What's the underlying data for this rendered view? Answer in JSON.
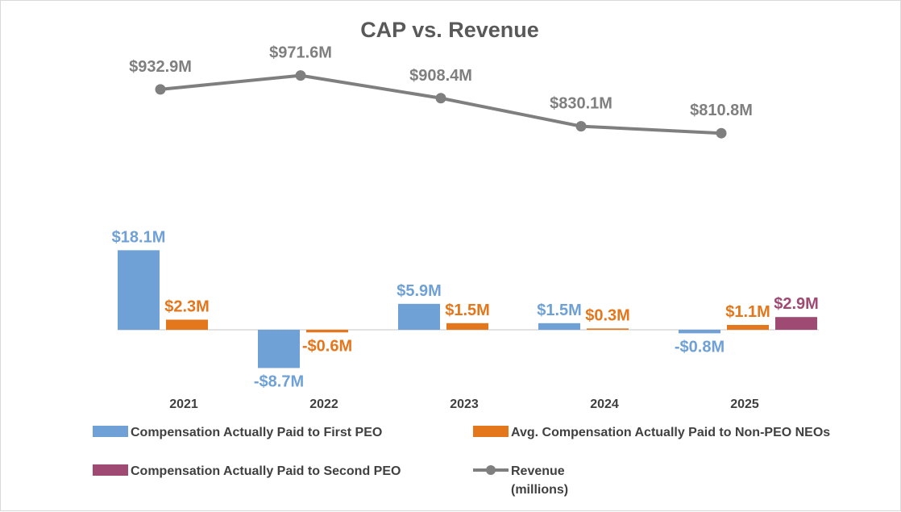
{
  "chart_data": {
    "type": "bar",
    "title": "CAP vs. Revenue",
    "categories": [
      "2021",
      "2022",
      "2023",
      "2024",
      "2025"
    ],
    "series": [
      {
        "name": "Compensation Actually Paid to First PEO",
        "type": "bar",
        "color": "#6fa1d6",
        "values": [
          18.1,
          -8.7,
          5.9,
          1.5,
          -0.8
        ],
        "labels": [
          "$18.1M",
          "-$8.7M",
          "$5.9M",
          "$1.5M",
          "-$0.8M"
        ]
      },
      {
        "name": "Avg. Compensation Actually Paid to Non-PEO NEOs",
        "type": "bar",
        "color": "#e4761b",
        "values": [
          2.3,
          -0.6,
          1.5,
          0.3,
          1.1
        ],
        "labels": [
          "$2.3M",
          "-$0.6M",
          "$1.5M",
          "$0.3M",
          "$1.1M"
        ]
      },
      {
        "name": "Compensation Actually Paid to Second PEO",
        "type": "bar",
        "color": "#9e4a72",
        "values": [
          null,
          null,
          null,
          null,
          2.9
        ],
        "labels": [
          null,
          null,
          null,
          null,
          "$2.9M"
        ]
      },
      {
        "name": "Revenue",
        "name_line2": "(millions)",
        "type": "line",
        "color": "#7f7f7f",
        "values": [
          932.9,
          971.6,
          908.4,
          830.1,
          810.8
        ],
        "labels": [
          "$932.9M",
          "$971.6M",
          "$908.4M",
          "$830.1M",
          "$810.8M"
        ]
      }
    ],
    "grid": false,
    "legend_position": "bottom"
  }
}
